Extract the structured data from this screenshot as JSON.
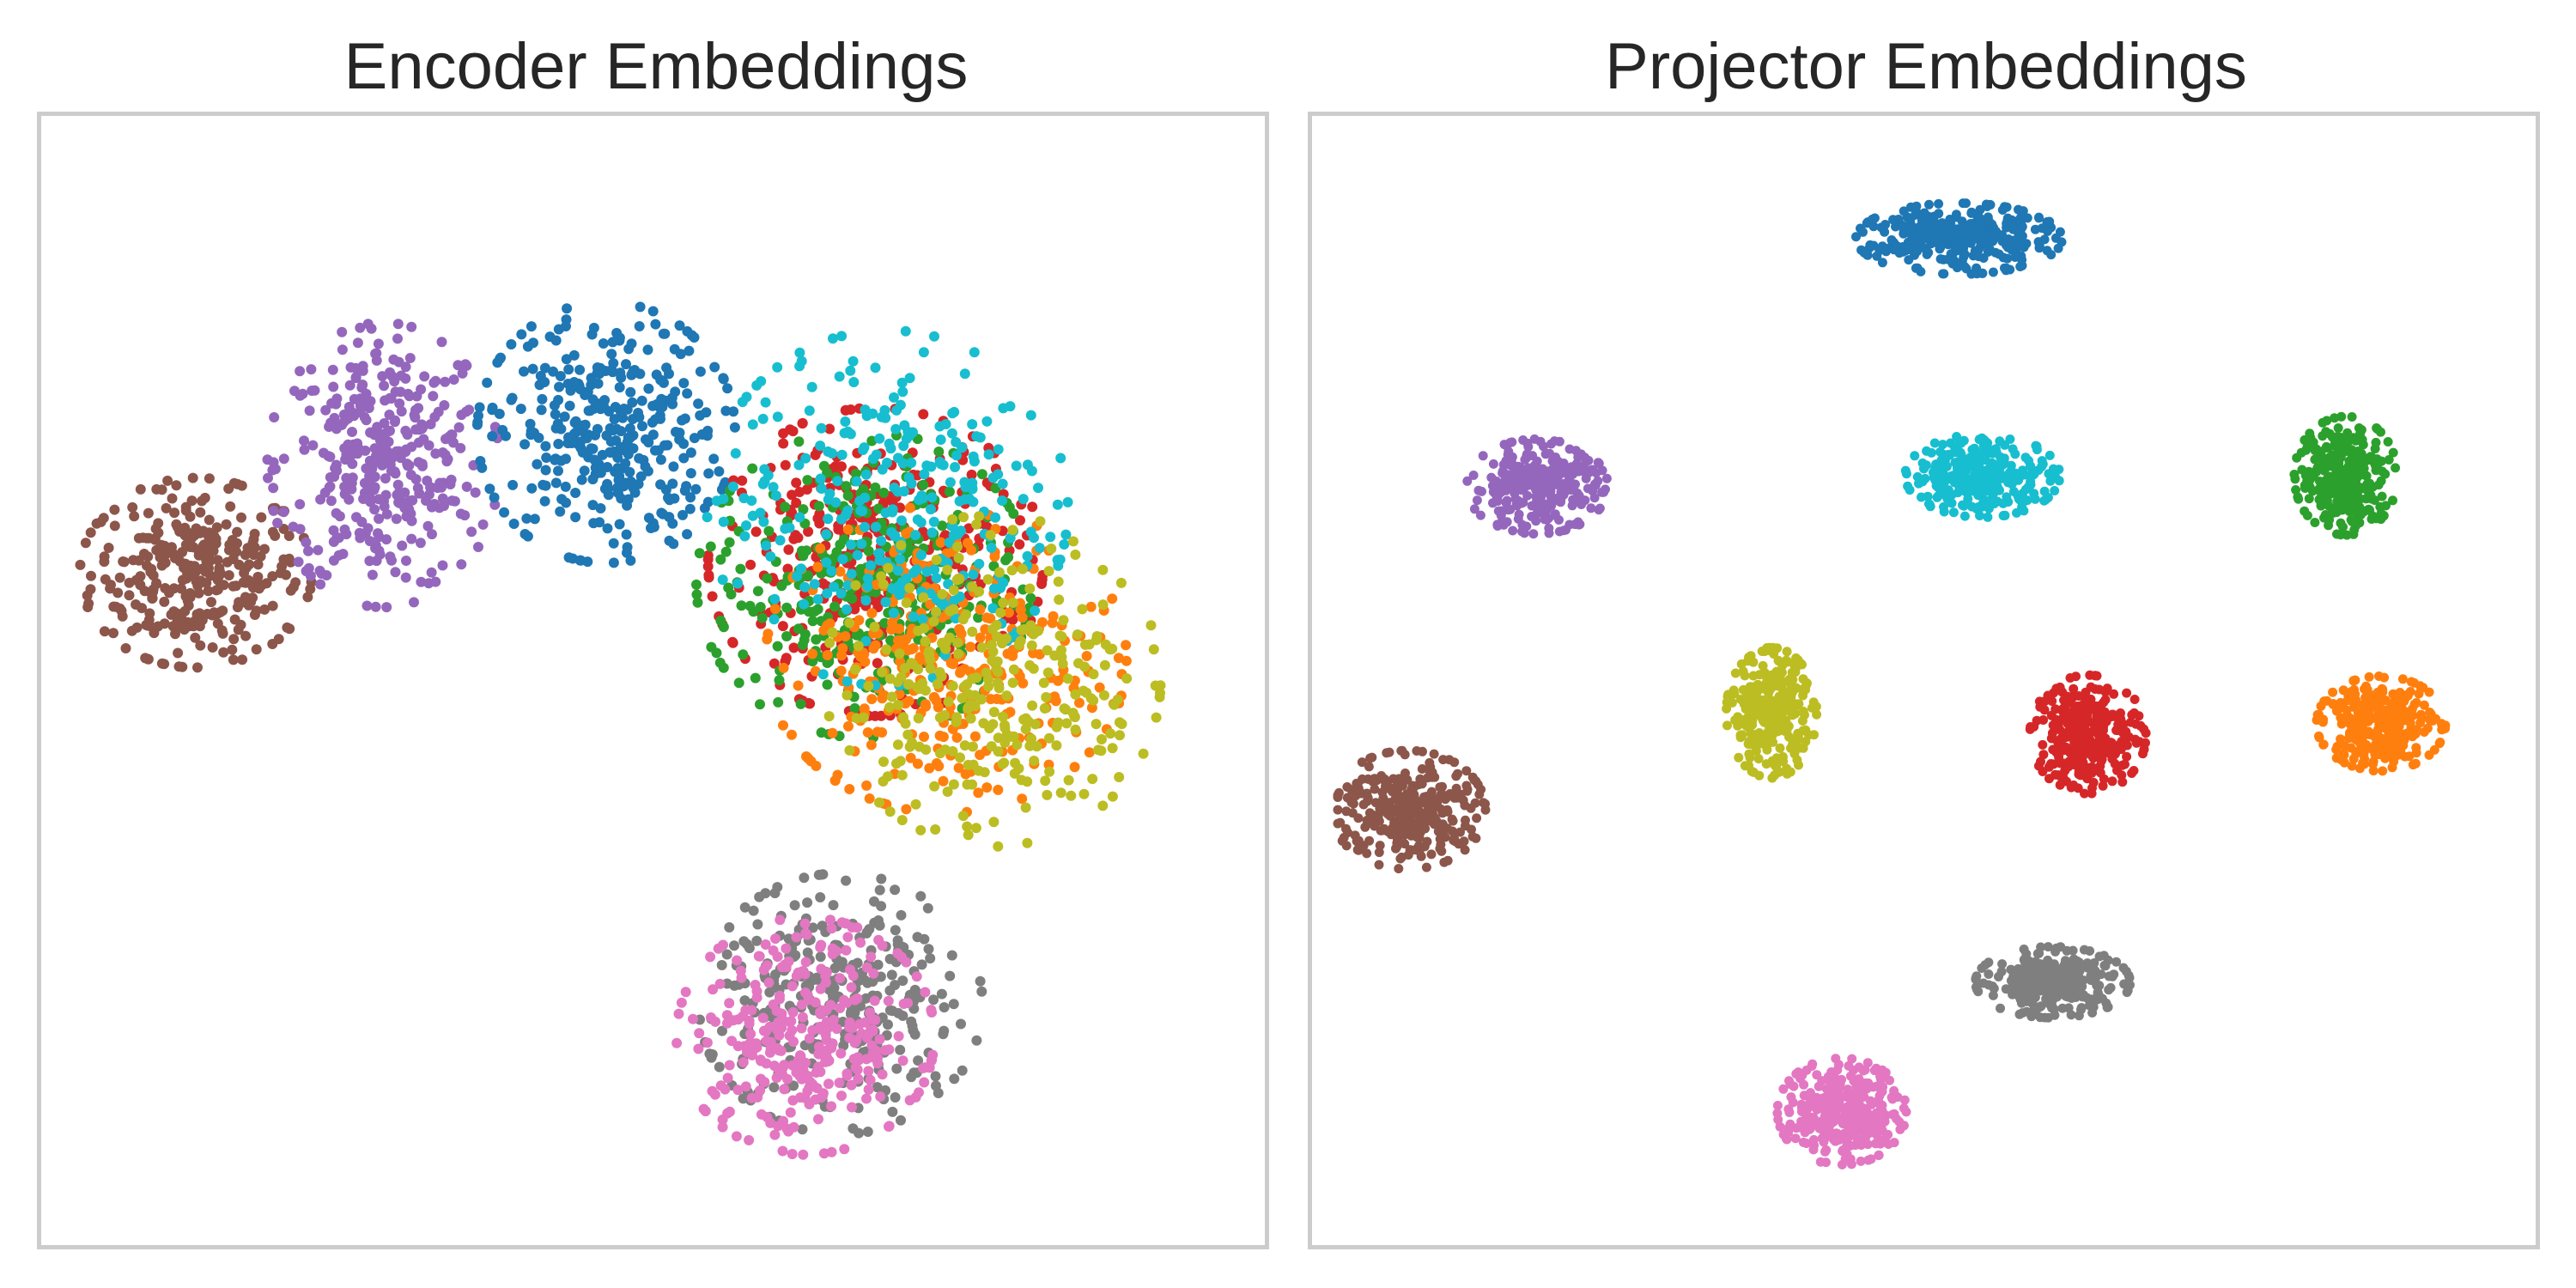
{
  "palette": {
    "blue": "#1f77b4",
    "orange": "#ff7f0e",
    "green": "#2ca02c",
    "red": "#d62728",
    "purple": "#9467bd",
    "brown": "#8c564b",
    "pink": "#e377c2",
    "gray": "#7f7f7f",
    "olive": "#bcbd22",
    "cyan": "#17becf"
  },
  "chart_data": [
    {
      "type": "scatter",
      "title": "Encoder Embeddings",
      "xlim": [
        0,
        100
      ],
      "ylim": [
        0,
        100
      ],
      "grid": false,
      "legend": "none",
      "ticks": false,
      "clusters": [
        {
          "color": "brown",
          "cx": 11,
          "cy": 60,
          "rx": 9,
          "ry": 8,
          "n": 320
        },
        {
          "color": "purple",
          "cx": 27,
          "cy": 70,
          "rx": 9,
          "ry": 12,
          "n": 360
        },
        {
          "color": "blue",
          "cx": 46,
          "cy": 73,
          "rx": 10,
          "ry": 11,
          "n": 360
        },
        {
          "color": "red",
          "cx": 69,
          "cy": 61,
          "rx": 13,
          "ry": 13,
          "n": 380
        },
        {
          "color": "green",
          "cx": 68,
          "cy": 59,
          "rx": 13,
          "ry": 13,
          "n": 330
        },
        {
          "color": "orange",
          "cx": 75,
          "cy": 52,
          "rx": 14,
          "ry": 13,
          "n": 330
        },
        {
          "color": "cyan",
          "cx": 70,
          "cy": 66,
          "rx": 14,
          "ry": 15,
          "n": 300
        },
        {
          "color": "olive",
          "cx": 79,
          "cy": 50,
          "rx": 13,
          "ry": 14,
          "n": 300
        },
        {
          "color": "gray",
          "cx": 66,
          "cy": 20,
          "rx": 11,
          "ry": 11,
          "n": 320
        },
        {
          "color": "pink",
          "cx": 63,
          "cy": 17,
          "rx": 10,
          "ry": 10,
          "n": 320
        }
      ]
    },
    {
      "type": "scatter",
      "title": "Projector Embeddings",
      "xlim": [
        0,
        100
      ],
      "ylim": [
        0,
        100
      ],
      "grid": false,
      "legend": "none",
      "ticks": false,
      "clusters": [
        {
          "color": "blue",
          "cx": 53,
          "cy": 91,
          "rx": 8,
          "ry": 3,
          "n": 330
        },
        {
          "color": "cyan",
          "cx": 55,
          "cy": 69,
          "rx": 6,
          "ry": 3.5,
          "n": 300
        },
        {
          "color": "purple",
          "cx": 17,
          "cy": 68,
          "rx": 5.5,
          "ry": 4,
          "n": 300
        },
        {
          "color": "green",
          "cx": 86,
          "cy": 69,
          "rx": 4,
          "ry": 5,
          "n": 300
        },
        {
          "color": "olive",
          "cx": 37,
          "cy": 47,
          "rx": 3.5,
          "ry": 5.5,
          "n": 300
        },
        {
          "color": "red",
          "cx": 64,
          "cy": 45,
          "rx": 4.5,
          "ry": 5,
          "n": 300
        },
        {
          "color": "orange",
          "cx": 89,
          "cy": 46,
          "rx": 5,
          "ry": 4,
          "n": 300
        },
        {
          "color": "brown",
          "cx": 6,
          "cy": 38,
          "rx": 6,
          "ry": 5,
          "n": 300
        },
        {
          "color": "gray",
          "cx": 61,
          "cy": 22,
          "rx": 6,
          "ry": 3,
          "n": 300
        },
        {
          "color": "pink",
          "cx": 43,
          "cy": 10,
          "rx": 5,
          "ry": 4.5,
          "n": 300
        }
      ]
    }
  ]
}
